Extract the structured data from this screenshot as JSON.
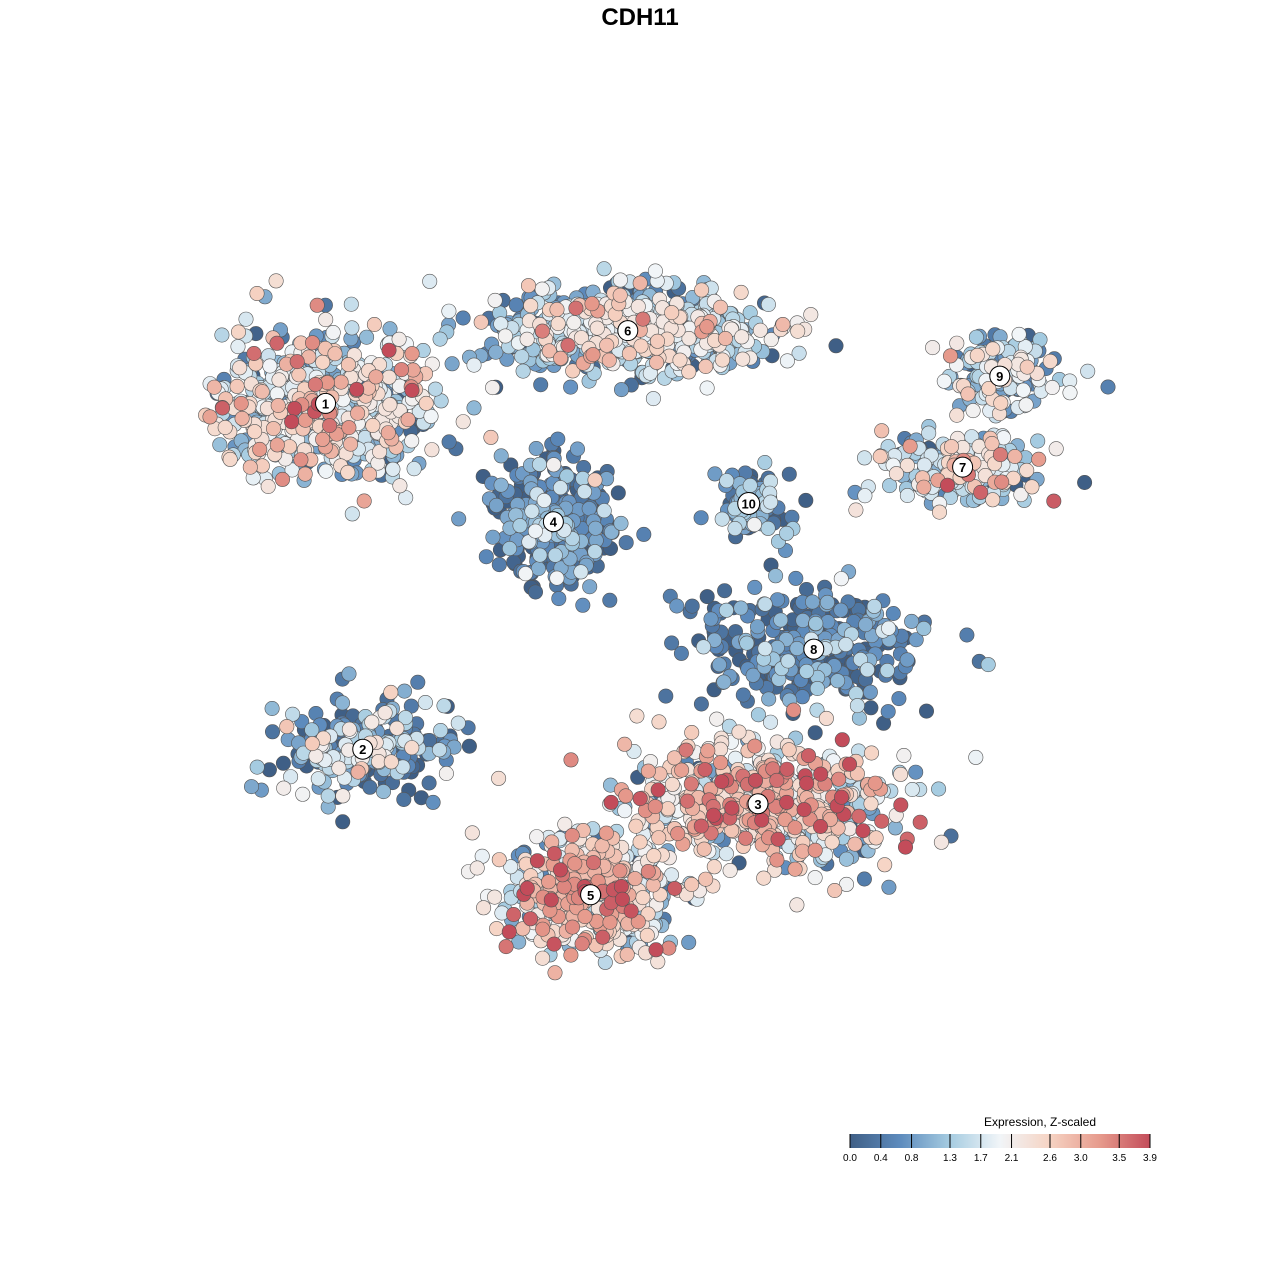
{
  "chart_data": {
    "type": "scatter",
    "title": "CDH11",
    "xlabel": "",
    "ylabel": "",
    "grid": false,
    "legend": {
      "title": "Expression, Z-scaled",
      "placement": "bottom-right",
      "ticks": [
        "0.0",
        "0.4",
        "0.8",
        "1.3",
        "1.7",
        "2.1",
        "2.6",
        "3.0",
        "3.5",
        "3.9"
      ],
      "tick_values": [
        0.0,
        0.4,
        0.8,
        1.3,
        1.7,
        2.1,
        2.6,
        3.0,
        3.5,
        3.9
      ],
      "range": [
        0.0,
        3.9
      ],
      "colors": [
        "#3f5f86",
        "#5d8bbd",
        "#a6cce1",
        "#f1f5f8",
        "#f6d3c3",
        "#e69a8c",
        "#c34c5a"
      ]
    },
    "x_range": [
      0,
      100
    ],
    "y_range": [
      0,
      100
    ],
    "clusters": [
      {
        "label": "1",
        "x": 13.5,
        "y": 76.0,
        "sx": 11.0,
        "sy": 7.6,
        "mean": 1.7,
        "sd": 0.9,
        "n": 650
      },
      {
        "label": "2",
        "x": 17.5,
        "y": 38.0,
        "sx": 8.0,
        "sy": 4.8,
        "mean": 0.9,
        "sd": 0.8,
        "n": 260
      },
      {
        "label": "3",
        "x": 60.0,
        "y": 32.0,
        "sx": 13.5,
        "sy": 6.6,
        "mean": 2.1,
        "sd": 1.0,
        "n": 650
      },
      {
        "label": "4",
        "x": 38.0,
        "y": 63.0,
        "sx": 5.6,
        "sy": 6.0,
        "mean": 0.4,
        "sd": 0.6,
        "n": 380
      },
      {
        "label": "5",
        "x": 42.0,
        "y": 22.0,
        "sx": 8.5,
        "sy": 5.6,
        "mean": 2.1,
        "sd": 0.9,
        "n": 460
      },
      {
        "label": "6",
        "x": 46.0,
        "y": 84.0,
        "sx": 13.0,
        "sy": 4.0,
        "mean": 1.4,
        "sd": 0.8,
        "n": 700
      },
      {
        "label": "7",
        "x": 82.0,
        "y": 69.0,
        "sx": 8.0,
        "sy": 3.6,
        "mean": 1.5,
        "sd": 0.9,
        "n": 230
      },
      {
        "label": "8",
        "x": 66.0,
        "y": 49.0,
        "sx": 11.0,
        "sy": 6.0,
        "mean": 0.4,
        "sd": 0.6,
        "n": 330
      },
      {
        "label": "9",
        "x": 86.0,
        "y": 79.0,
        "sx": 6.0,
        "sy": 3.6,
        "mean": 1.2,
        "sd": 0.8,
        "n": 160
      },
      {
        "label": "10",
        "x": 59.0,
        "y": 65.0,
        "sx": 3.5,
        "sy": 3.6,
        "mean": 0.6,
        "sd": 0.6,
        "n": 90
      }
    ]
  }
}
